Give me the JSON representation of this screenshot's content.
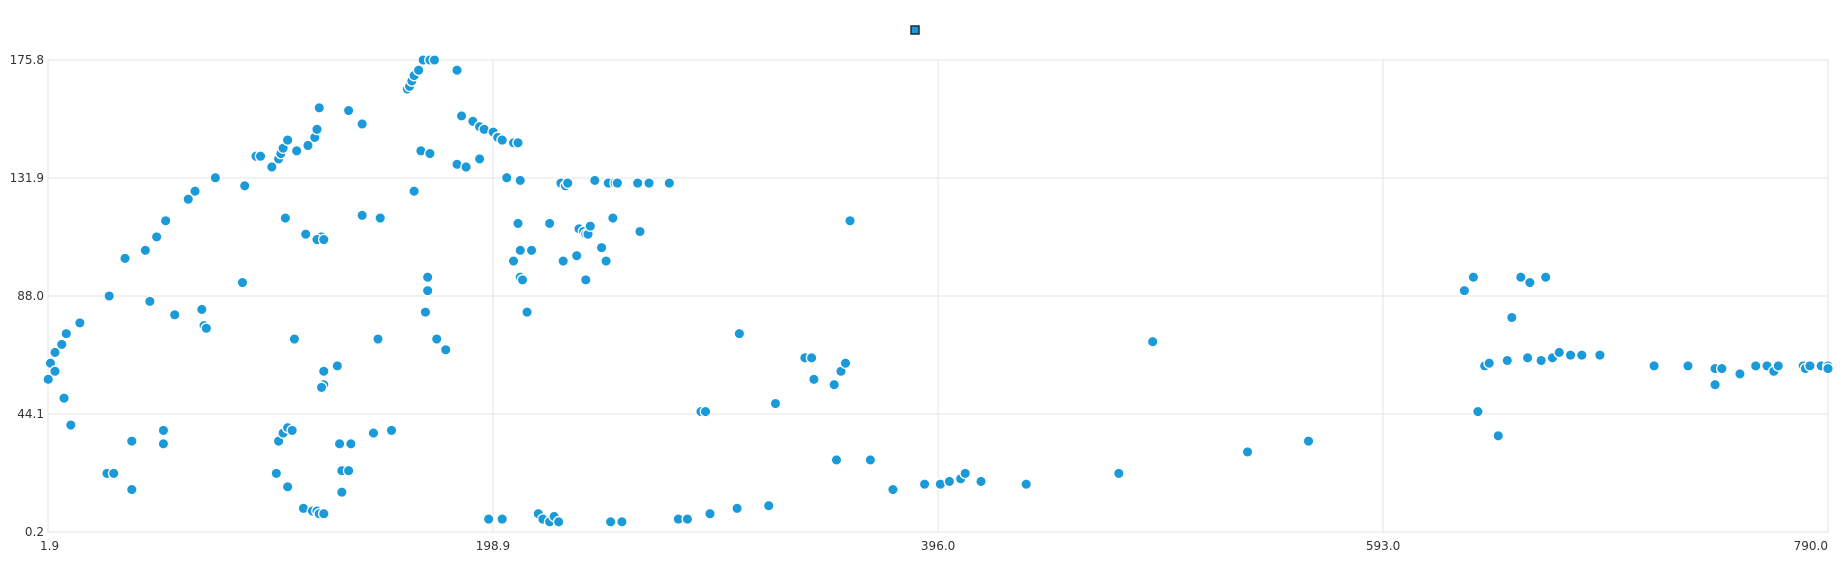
{
  "chart_data": {
    "type": "scatter",
    "title": "",
    "xlabel": "",
    "ylabel": "",
    "xlim": [
      1.9,
      790.0
    ],
    "ylim": [
      0.2,
      175.8
    ],
    "x_ticks": [
      "1.9",
      "198.9",
      "396.0",
      "593.0",
      "790.0"
    ],
    "y_ticks": [
      "0.2",
      "44.1",
      "88.0",
      "131.9",
      "175.8"
    ],
    "x_tick_values": [
      1.9,
      198.9,
      396.0,
      593.0,
      790.0
    ],
    "y_tick_values": [
      0.2,
      44.1,
      88.0,
      131.9,
      175.8
    ],
    "grid": true,
    "legend": {
      "position": "top-center",
      "entries": [
        {
          "name": "",
          "color": "#1a9ad8"
        }
      ]
    },
    "series": [
      {
        "name": "",
        "color": "#1a9ad8",
        "points": [
          [
            2,
            57
          ],
          [
            3,
            63
          ],
          [
            5,
            60
          ],
          [
            5,
            67
          ],
          [
            8,
            70
          ],
          [
            9,
            50
          ],
          [
            10,
            74
          ],
          [
            12,
            40
          ],
          [
            16,
            78
          ],
          [
            28,
            22
          ],
          [
            31,
            22
          ],
          [
            29,
            88
          ],
          [
            36,
            102
          ],
          [
            39,
            16
          ],
          [
            39,
            34
          ],
          [
            45,
            105
          ],
          [
            47,
            86
          ],
          [
            50,
            110
          ],
          [
            53,
            38
          ],
          [
            53,
            33
          ],
          [
            54,
            116
          ],
          [
            58,
            81
          ],
          [
            64,
            124
          ],
          [
            67,
            127
          ],
          [
            70,
            83
          ],
          [
            71,
            77
          ],
          [
            72,
            76
          ],
          [
            76,
            132
          ],
          [
            88,
            93
          ],
          [
            89,
            129
          ],
          [
            94,
            140
          ],
          [
            96,
            140
          ],
          [
            101,
            136
          ],
          [
            104,
            139
          ],
          [
            105,
            141
          ],
          [
            106,
            143
          ],
          [
            108,
            146
          ],
          [
            112,
            142
          ],
          [
            104,
            34
          ],
          [
            103,
            22
          ],
          [
            106,
            37
          ],
          [
            108,
            39
          ],
          [
            110,
            38
          ],
          [
            108,
            17
          ],
          [
            107,
            117
          ],
          [
            111,
            72
          ],
          [
            116,
            111
          ],
          [
            117,
            144
          ],
          [
            120,
            147
          ],
          [
            121,
            150
          ],
          [
            122,
            158
          ],
          [
            123,
            110
          ],
          [
            121,
            109
          ],
          [
            124,
            109
          ],
          [
            115,
            9
          ],
          [
            119,
            8
          ],
          [
            121,
            8
          ],
          [
            122,
            7
          ],
          [
            124,
            7
          ],
          [
            124,
            60
          ],
          [
            124,
            55
          ],
          [
            123,
            54
          ],
          [
            130,
            62
          ],
          [
            131,
            33
          ],
          [
            132,
            23
          ],
          [
            136,
            33
          ],
          [
            135,
            23
          ],
          [
            132,
            15
          ],
          [
            135,
            157
          ],
          [
            141,
            152
          ],
          [
            141,
            118
          ],
          [
            146,
            37
          ],
          [
            149,
            117
          ],
          [
            148,
            72
          ],
          [
            154,
            38
          ],
          [
            164,
            127
          ],
          [
            161,
            165
          ],
          [
            162,
            166
          ],
          [
            163,
            168
          ],
          [
            164,
            170
          ],
          [
            166,
            172
          ],
          [
            168,
            176
          ],
          [
            171,
            176
          ],
          [
            173,
            178
          ],
          [
            167,
            142
          ],
          [
            171,
            141
          ],
          [
            170,
            95
          ],
          [
            170,
            90
          ],
          [
            169,
            82
          ],
          [
            174,
            72
          ],
          [
            178,
            68
          ],
          [
            183,
            172
          ],
          [
            183,
            137
          ],
          [
            185,
            155
          ],
          [
            187,
            136
          ],
          [
            190,
            153
          ],
          [
            193,
            151
          ],
          [
            195,
            150
          ],
          [
            199,
            149
          ],
          [
            201,
            147
          ],
          [
            203,
            146
          ],
          [
            197,
            5
          ],
          [
            203,
            5
          ],
          [
            193,
            139
          ],
          [
            203,
            146
          ],
          [
            208,
            145
          ],
          [
            210,
            145
          ],
          [
            205,
            132
          ],
          [
            211,
            131
          ],
          [
            210,
            115
          ],
          [
            208,
            101
          ],
          [
            211,
            105
          ],
          [
            211,
            95
          ],
          [
            212,
            94
          ],
          [
            214,
            82
          ],
          [
            216,
            105
          ],
          [
            219,
            7
          ],
          [
            221,
            5
          ],
          [
            224,
            4
          ],
          [
            226,
            6
          ],
          [
            228,
            4
          ],
          [
            224,
            115
          ],
          [
            230,
            101
          ],
          [
            229,
            130
          ],
          [
            231,
            129
          ],
          [
            232,
            130
          ],
          [
            236,
            103
          ],
          [
            237,
            113
          ],
          [
            239,
            112
          ],
          [
            240,
            111
          ],
          [
            241,
            111
          ],
          [
            242,
            114
          ],
          [
            240,
            94
          ],
          [
            244,
            131
          ],
          [
            247,
            106
          ],
          [
            252,
            117
          ],
          [
            249,
            101
          ],
          [
            251,
            4
          ],
          [
            256,
            4
          ],
          [
            250,
            130
          ],
          [
            253,
            130
          ],
          [
            254,
            130
          ],
          [
            263,
            130
          ],
          [
            268,
            130
          ],
          [
            264,
            112
          ],
          [
            277,
            130
          ],
          [
            281,
            5
          ],
          [
            285,
            5
          ],
          [
            291,
            45
          ],
          [
            293,
            45
          ],
          [
            295,
            7
          ],
          [
            308,
            74
          ],
          [
            307,
            9
          ],
          [
            321,
            10
          ],
          [
            324,
            48
          ],
          [
            337,
            65
          ],
          [
            340,
            65
          ],
          [
            341,
            57
          ],
          [
            350,
            55
          ],
          [
            353,
            60
          ],
          [
            351,
            27
          ],
          [
            355,
            63
          ],
          [
            357,
            116
          ],
          [
            366,
            27
          ],
          [
            376,
            16
          ],
          [
            390,
            18
          ],
          [
            397,
            18
          ],
          [
            401,
            19
          ],
          [
            406,
            20
          ],
          [
            408,
            22
          ],
          [
            415,
            19
          ],
          [
            435,
            18
          ],
          [
            476,
            22
          ],
          [
            491,
            71
          ],
          [
            533,
            30
          ],
          [
            560,
            34
          ],
          [
            629,
            90
          ],
          [
            633,
            95
          ],
          [
            635,
            45
          ],
          [
            638,
            62
          ],
          [
            640,
            63
          ],
          [
            648,
            64
          ],
          [
            657,
            65
          ],
          [
            663,
            64
          ],
          [
            668,
            65
          ],
          [
            676,
            66
          ],
          [
            681,
            66
          ],
          [
            650,
            80
          ],
          [
            654,
            95
          ],
          [
            658,
            93
          ],
          [
            665,
            95
          ],
          [
            671,
            67
          ],
          [
            689,
            66
          ],
          [
            713,
            62
          ],
          [
            728,
            62
          ],
          [
            740,
            61
          ],
          [
            740,
            55
          ],
          [
            743,
            61
          ],
          [
            751,
            59
          ],
          [
            758,
            62
          ],
          [
            763,
            62
          ],
          [
            766,
            60
          ],
          [
            768,
            62
          ],
          [
            779,
            62
          ],
          [
            780,
            61
          ],
          [
            782,
            62
          ],
          [
            787,
            62
          ],
          [
            790,
            62
          ],
          [
            799,
            61
          ],
          [
            644,
            36
          ]
        ]
      }
    ]
  }
}
